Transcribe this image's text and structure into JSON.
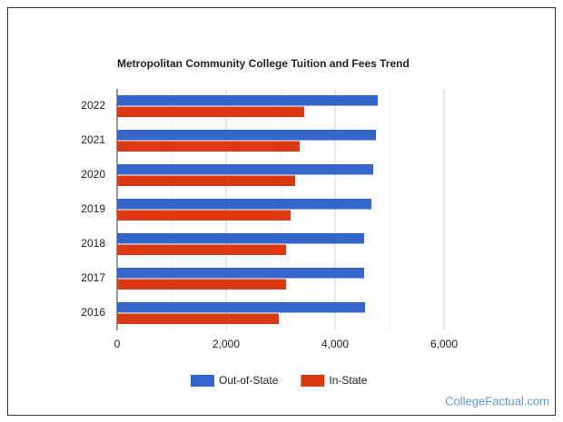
{
  "chart_data": {
    "type": "hbar",
    "title": "Metropolitan Community College Tuition and Fees Trend",
    "categories": [
      "2022",
      "2021",
      "2020",
      "2019",
      "2018",
      "2017",
      "2016"
    ],
    "series": [
      {
        "name": "Out-of-State",
        "color": "#3366cc",
        "values": [
          4783,
          4750,
          4700,
          4667,
          4533,
          4533,
          4550
        ]
      },
      {
        "name": "In-State",
        "color": "#dc3912",
        "values": [
          3433,
          3350,
          3267,
          3183,
          3100,
          3100,
          2967
        ]
      }
    ],
    "xlim": [
      0,
      6000
    ],
    "xticks": [
      0,
      {
        "value": 2000,
        "label": "2,000"
      },
      {
        "value": 4000,
        "label": "4,000"
      },
      {
        "value": 6000,
        "label": "6,000"
      }
    ],
    "minor_xticks": [
      1000,
      3000,
      5000
    ],
    "grid": true,
    "legend": "bottom",
    "watermark": "CollegeFactual.com"
  }
}
